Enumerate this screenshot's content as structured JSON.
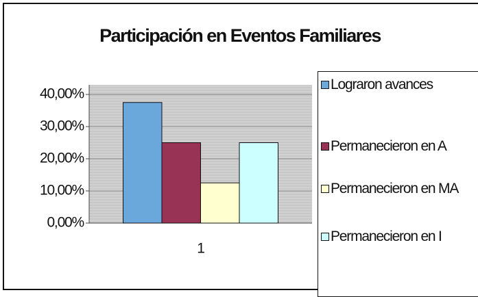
{
  "chart_data": {
    "type": "bar",
    "title": "Participación en Eventos Familiares",
    "categories": [
      "1"
    ],
    "series": [
      {
        "name": "Lograron avances",
        "color": "#6aa8dc",
        "values": [
          37.5
        ]
      },
      {
        "name": "Permanecieron en A",
        "color": "#993355",
        "values": [
          25
        ]
      },
      {
        "name": "Permanecieron en MA",
        "color": "#ffffd0",
        "values": [
          12.5
        ]
      },
      {
        "name": "Permanecieron en I",
        "color": "#ccffff",
        "values": [
          25
        ]
      }
    ],
    "ylim": [
      0,
      40
    ],
    "yticks": [
      {
        "value": 0,
        "label": "0,00%"
      },
      {
        "value": 10,
        "label": "10,00%"
      },
      {
        "value": 20,
        "label": "20,00%"
      },
      {
        "value": 30,
        "label": "30,00%"
      },
      {
        "value": 40,
        "label": "40,00%"
      }
    ],
    "grid": true,
    "legend": "right"
  }
}
